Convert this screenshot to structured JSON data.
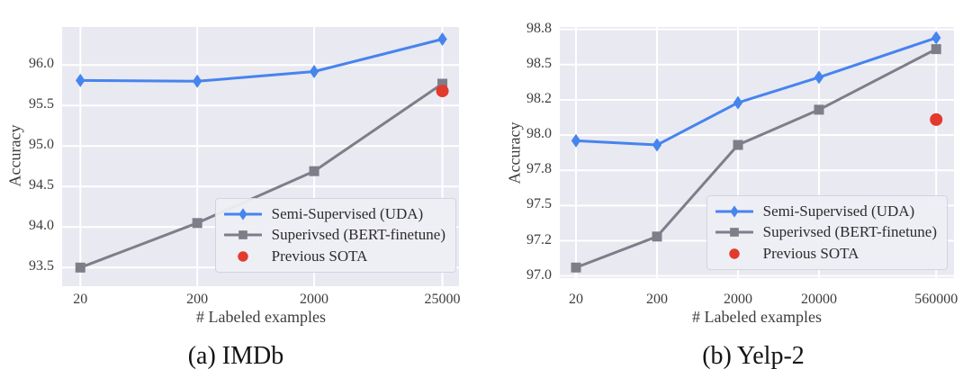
{
  "colors": {
    "uda_blue": "#4684ee",
    "bert_gray": "#7e7e89",
    "sota_red": "#e23a2d",
    "plot_background": "#e9e9f1",
    "gridline": "#ffffff",
    "tick_text": "#3d3d3d"
  },
  "chart_data": [
    {
      "type": "line",
      "title": "(a) IMDb",
      "caption": "(a) IMDb",
      "xlabel": "# Labeled examples",
      "ylabel": "Accuracy",
      "x": [
        20,
        200,
        2000,
        25000
      ],
      "xticklabels": [
        "20",
        "200",
        "2000",
        "25000"
      ],
      "yticks": [
        93.5,
        94.0,
        94.5,
        95.0,
        95.5,
        96.0
      ],
      "yticklabels": [
        "93.5",
        "94.0",
        "94.5",
        "95.0",
        "95.5",
        "96.0"
      ],
      "ylim": [
        93.27,
        96.47
      ],
      "xlim_log": [
        1.145,
        4.54
      ],
      "x_scale": "log",
      "grid": true,
      "legend_position": "lower right",
      "series": [
        {
          "name": "Semi-Supervised (UDA)",
          "marker": "diamond",
          "color": "#4684ee",
          "values": [
            95.81,
            95.8,
            95.92,
            96.32
          ]
        },
        {
          "name": "Superivsed (BERT-finetune)",
          "marker": "square",
          "color": "#7e7e89",
          "values": [
            93.5,
            94.05,
            94.69,
            95.77
          ]
        }
      ],
      "sota": {
        "name": "Previous SOTA",
        "marker": "circle",
        "color": "#e23a2d",
        "x": 25000,
        "y": 95.68
      }
    },
    {
      "type": "line",
      "title": "(b) Yelp-2",
      "caption": "(b) Yelp-2",
      "xlabel": "# Labeled examples",
      "ylabel": "Accuracy",
      "x": [
        20,
        200,
        2000,
        20000,
        560000
      ],
      "xticklabels": [
        "20",
        "200",
        "2000",
        "20000",
        "560000"
      ],
      "yticks": [
        97.0,
        97.25,
        97.5,
        97.75,
        98.0,
        98.25,
        98.5,
        98.75
      ],
      "yticklabels": [
        "97.0",
        "97.2",
        "97.5",
        "97.8",
        "98.0",
        "98.2",
        "98.5",
        "98.8"
      ],
      "ylim": [
        96.985,
        98.767
      ],
      "xlim_log": [
        1.101,
        5.968
      ],
      "x_scale": "log",
      "grid": true,
      "legend_position": "lower right",
      "series": [
        {
          "name": "Semi-Supervised (UDA)",
          "marker": "diamond",
          "color": "#4684ee",
          "values": [
            97.96,
            97.93,
            98.23,
            98.41,
            98.69
          ]
        },
        {
          "name": "Superivsed (BERT-finetune)",
          "marker": "square",
          "color": "#7e7e89",
          "values": [
            97.06,
            97.28,
            97.93,
            98.18,
            98.61
          ]
        }
      ],
      "sota": {
        "name": "Previous SOTA",
        "marker": "circle",
        "color": "#e23a2d",
        "x": 560000,
        "y": 98.11
      }
    }
  ]
}
